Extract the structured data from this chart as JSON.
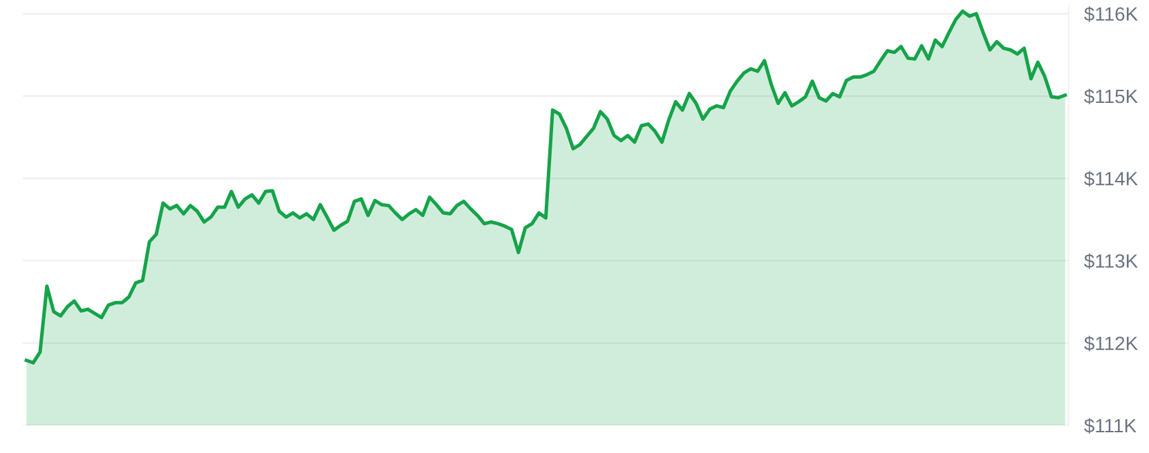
{
  "chart_data": {
    "type": "area",
    "categories": [
      null,
      null,
      null,
      null,
      null,
      null,
      null,
      null,
      null,
      null,
      null,
      null,
      null,
      null,
      null,
      null,
      null,
      null,
      null,
      null,
      null,
      null,
      null,
      null,
      null,
      null,
      null,
      null,
      null,
      null,
      null,
      null,
      null,
      null,
      null,
      null,
      null,
      null,
      null,
      null,
      null,
      null,
      null,
      null,
      null,
      null,
      null,
      null,
      null,
      null,
      null,
      null,
      null,
      null,
      null,
      null,
      null,
      null,
      null,
      null,
      null,
      null,
      null,
      null,
      null,
      null,
      null,
      null,
      null,
      null,
      null,
      null,
      null,
      null,
      null,
      null,
      null,
      null,
      null,
      null,
      null,
      null,
      null,
      null,
      null,
      null,
      null,
      null,
      null,
      null,
      null,
      null,
      null,
      null,
      null,
      null,
      null,
      null,
      null,
      null,
      null,
      null,
      null,
      null,
      null,
      null,
      null,
      null,
      null,
      null,
      null,
      null,
      null,
      null,
      null,
      null,
      null,
      null,
      null,
      null,
      null,
      null,
      null,
      null,
      null,
      null,
      null,
      null,
      null,
      null,
      null,
      null,
      null,
      null,
      null,
      null,
      null,
      null,
      null,
      null,
      null,
      null,
      null,
      null,
      null,
      null,
      null,
      null,
      null,
      null,
      null,
      null,
      null
    ],
    "series": [
      {
        "color": "#16a34a",
        "values": [
          111.79,
          111.76,
          111.89,
          112.69,
          112.38,
          112.33,
          112.44,
          112.51,
          112.39,
          112.41,
          112.36,
          112.31,
          112.46,
          112.49,
          112.49,
          112.56,
          112.73,
          112.76,
          113.23,
          113.32,
          113.7,
          113.63,
          113.67,
          113.57,
          113.67,
          113.6,
          113.47,
          113.53,
          113.65,
          113.65,
          113.84,
          113.65,
          113.75,
          113.8,
          113.7,
          113.84,
          113.85,
          113.6,
          113.53,
          113.58,
          113.52,
          113.57,
          113.5,
          113.68,
          113.53,
          113.37,
          113.43,
          113.48,
          113.72,
          113.75,
          113.55,
          113.73,
          113.68,
          113.67,
          113.58,
          113.5,
          113.57,
          113.62,
          113.55,
          113.77,
          113.68,
          113.58,
          113.57,
          113.67,
          113.72,
          113.63,
          113.55,
          113.45,
          113.47,
          113.45,
          113.42,
          113.38,
          113.1,
          113.4,
          113.45,
          113.58,
          113.52,
          114.83,
          114.78,
          114.61,
          114.36,
          114.41,
          114.51,
          114.61,
          114.81,
          114.72,
          114.52,
          114.46,
          114.52,
          114.44,
          114.64,
          114.66,
          114.57,
          114.44,
          114.71,
          114.93,
          114.83,
          115.03,
          114.91,
          114.72,
          114.84,
          114.88,
          114.86,
          115.06,
          115.18,
          115.28,
          115.33,
          115.3,
          115.43,
          115.14,
          114.91,
          115.04,
          114.88,
          114.93,
          114.99,
          115.18,
          114.98,
          114.94,
          115.03,
          114.99,
          115.19,
          115.23,
          115.23,
          115.26,
          115.3,
          115.43,
          115.55,
          115.53,
          115.6,
          115.46,
          115.45,
          115.61,
          115.45,
          115.68,
          115.6,
          115.77,
          115.93,
          116.03,
          115.97,
          116.0,
          115.77,
          115.56,
          115.66,
          115.58,
          115.56,
          115.51,
          115.58,
          115.21,
          115.41,
          115.24,
          114.99,
          114.98,
          115.01
        ]
      }
    ],
    "ylim": [
      111,
      116.1
    ],
    "yticks": [
      {
        "value": 111,
        "label": "$111K"
      },
      {
        "value": 112,
        "label": "$112K"
      },
      {
        "value": 113,
        "label": "$113K"
      },
      {
        "value": 114,
        "label": "$114K"
      },
      {
        "value": 115,
        "label": "$115K"
      },
      {
        "value": 116,
        "label": "$116K"
      }
    ],
    "tick_labels": "y",
    "grid": "y",
    "marker": "none",
    "line_style": "solid"
  }
}
